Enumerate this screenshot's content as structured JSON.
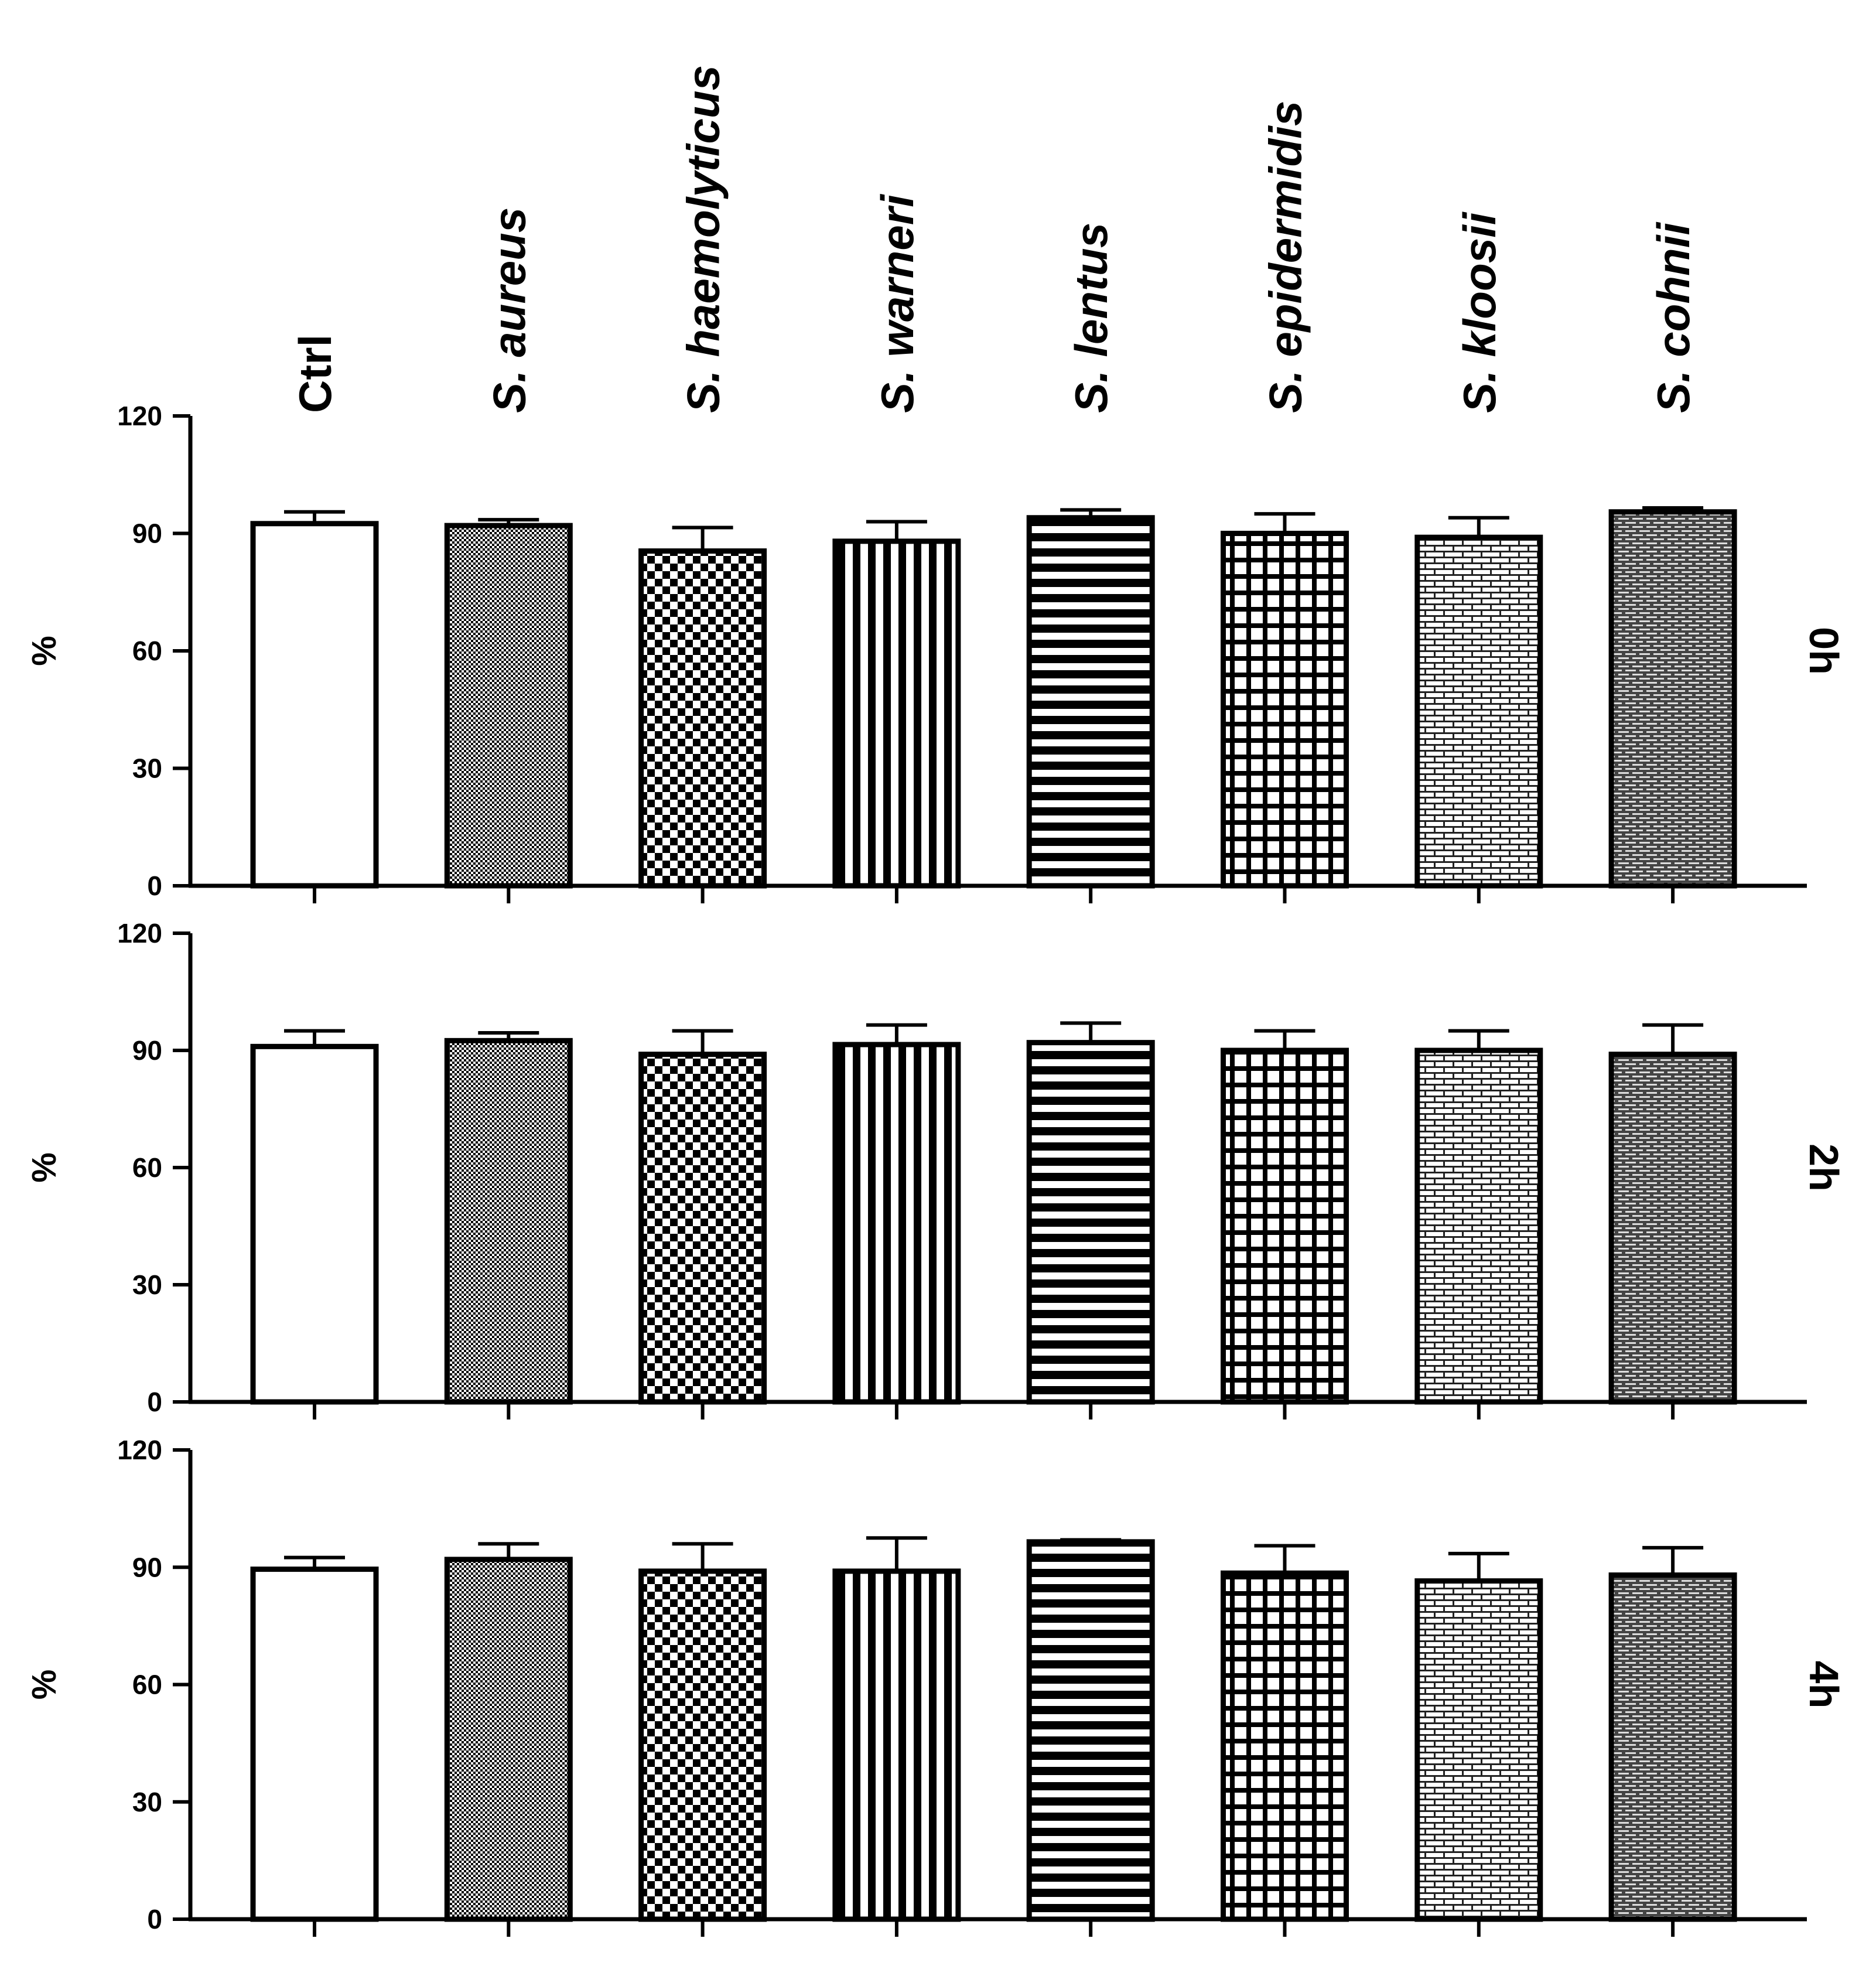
{
  "colors": {
    "ink": "#000000",
    "paper": "#ffffff"
  },
  "chart_data": {
    "type": "bar",
    "title": "",
    "xlabel": "",
    "ylabel": "%",
    "ylim": [
      0,
      120
    ],
    "yticks": [
      "0",
      "30",
      "60",
      "90",
      "120"
    ],
    "grid": false,
    "categories": [
      {
        "prefix": "",
        "name": "Ctrl"
      },
      {
        "prefix": "S. ",
        "name": "aureus"
      },
      {
        "prefix": "S. ",
        "name": "haemolyticus"
      },
      {
        "prefix": "S. ",
        "name": "warneri"
      },
      {
        "prefix": "S. ",
        "name": "lentus"
      },
      {
        "prefix": "S. ",
        "name": "epidermidis"
      },
      {
        "prefix": "S. ",
        "name": "kloosii"
      },
      {
        "prefix": "S. ",
        "name": "cohnii"
      }
    ],
    "patterns": [
      "none",
      "fine-check",
      "checker",
      "vertical-stripes",
      "horizontal-stripes",
      "grid",
      "light-brick",
      "dense-brick"
    ],
    "panels": [
      {
        "label": "0h",
        "values": [
          92.5,
          92,
          85.5,
          88,
          94,
          90,
          89,
          95.5
        ],
        "errors": [
          3,
          1.5,
          6,
          5,
          2,
          5,
          5,
          1
        ]
      },
      {
        "label": "2h",
        "values": [
          91,
          92.5,
          89,
          91.5,
          92,
          90,
          90,
          89
        ],
        "errors": [
          4,
          2,
          6,
          5,
          5,
          5,
          5,
          7.5
        ]
      },
      {
        "label": "4h",
        "values": [
          89.5,
          92,
          89,
          89,
          96.5,
          88.5,
          86.5,
          88
        ],
        "errors": [
          3,
          4,
          7,
          8.5,
          0.5,
          7,
          7,
          7
        ]
      }
    ]
  }
}
